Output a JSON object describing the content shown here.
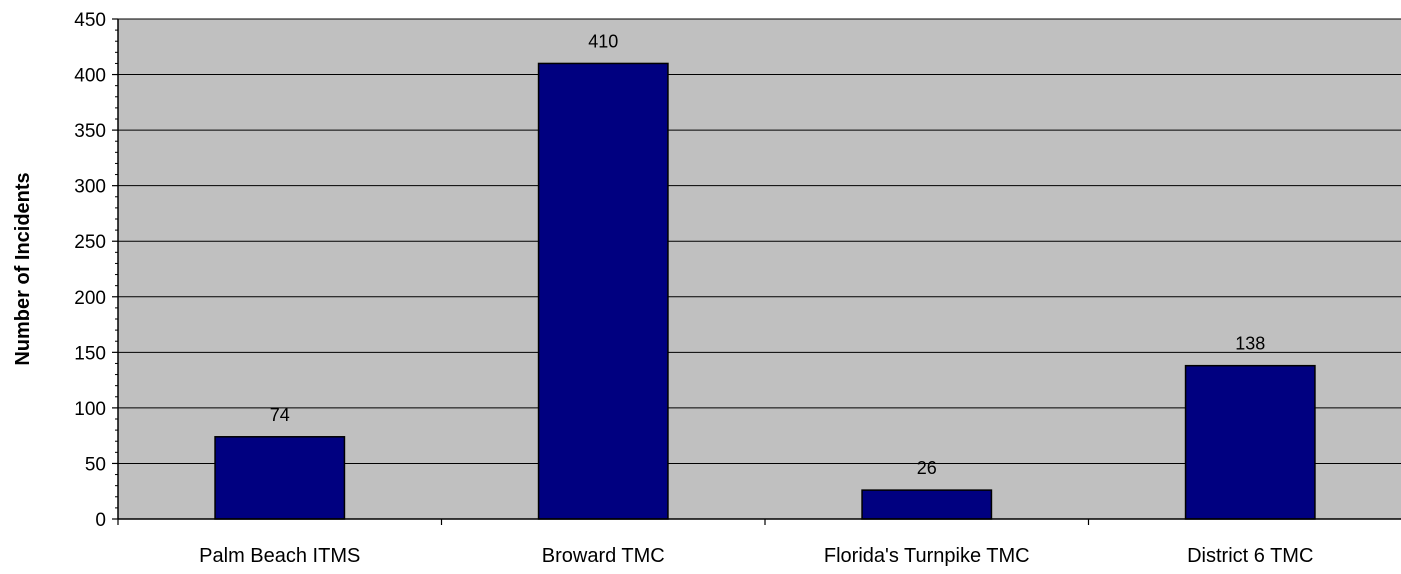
{
  "chart_data": {
    "type": "bar",
    "title": "",
    "xlabel": "",
    "ylabel": "Number of Incidents",
    "categories": [
      "Palm Beach ITMS",
      "Broward TMC",
      "Florida's Turnpike TMC",
      "District 6 TMC"
    ],
    "values": [
      74,
      410,
      26,
      138
    ],
    "data_labels": [
      "74",
      "410",
      "26",
      "138"
    ],
    "ylim": [
      0,
      450
    ],
    "yticks": [
      0,
      50,
      100,
      150,
      200,
      250,
      300,
      350,
      400,
      450
    ],
    "ytick_labels": [
      "0",
      "50",
      "100",
      "150",
      "200",
      "250",
      "300",
      "350",
      "400",
      "450"
    ],
    "grid": true,
    "legend": "none",
    "colors": {
      "bar_fill": "#000080",
      "plot_background": "#c0c0c0",
      "gridline": "#000000"
    }
  }
}
